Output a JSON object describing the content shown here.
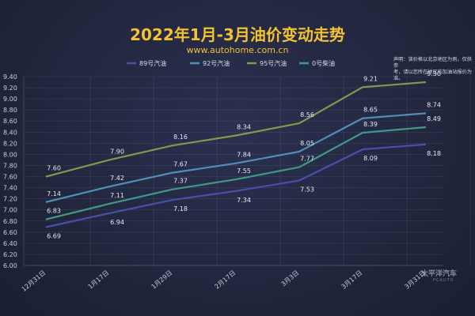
{
  "header": {
    "title": "2022年1月-3月油价变动走势",
    "subtitle": "www.autohome.com.cn"
  },
  "note": {
    "line1": "声明：该价格以北京地区为例，仅供参",
    "line2": "考，请以您所在地区的加油站报价为准。"
  },
  "watermark": {
    "text": "太平洋汽车",
    "sub": "PCAUTO"
  },
  "chart_data": {
    "type": "line",
    "title": "2022年1月-3月油价变动走势",
    "xlabel": "",
    "ylabel": "",
    "categories": [
      "12月31日",
      "1月17日",
      "1月29日",
      "2月17日",
      "3月3日",
      "3月17日",
      "3月31日"
    ],
    "ylim": [
      6.0,
      9.4
    ],
    "yticks": [
      "6.00",
      "6.20",
      "6.40",
      "6.60",
      "6.80",
      "7.00",
      "7.20",
      "7.40",
      "7.60",
      "7.80",
      "8.00",
      "8.20",
      "8.40",
      "8.60",
      "8.80",
      "9.00",
      "9.20",
      "9.40"
    ],
    "grid": true,
    "legend_position": "top",
    "series": [
      {
        "name": "89号汽油",
        "color": "#4a4fa8",
        "values": [
          6.69,
          6.94,
          7.18,
          7.34,
          7.53,
          8.09,
          8.18
        ]
      },
      {
        "name": "92号汽油",
        "color": "#4f8fb8",
        "values": [
          7.14,
          7.42,
          7.67,
          7.84,
          8.05,
          8.65,
          8.74
        ]
      },
      {
        "name": "95号汽油",
        "color": "#7f9a4c",
        "values": [
          7.6,
          7.9,
          8.16,
          8.34,
          8.56,
          9.21,
          9.3
        ]
      },
      {
        "name": "0号柴油",
        "color": "#3e9a84",
        "values": [
          6.83,
          7.11,
          7.37,
          7.55,
          7.77,
          8.39,
          8.49
        ]
      }
    ]
  }
}
